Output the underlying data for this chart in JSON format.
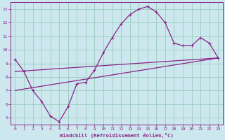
{
  "xlabel": "Windchill (Refroidissement éolien,°C)",
  "xlim": [
    -0.5,
    23.5
  ],
  "ylim": [
    4.5,
    13.5
  ],
  "xticks": [
    0,
    1,
    2,
    3,
    4,
    5,
    6,
    7,
    8,
    9,
    10,
    11,
    12,
    13,
    14,
    15,
    16,
    17,
    18,
    19,
    20,
    21,
    22,
    23
  ],
  "yticks": [
    5,
    6,
    7,
    8,
    9,
    10,
    11,
    12,
    13
  ],
  "bg_color": "#cce8ee",
  "grid_color": "#99ccbb",
  "line_color": "#882288",
  "curve1_x": [
    0,
    1,
    2,
    3,
    4,
    5,
    6,
    7,
    8,
    9,
    10,
    11,
    12,
    13,
    14,
    15,
    16,
    17,
    18,
    19,
    20,
    21,
    22,
    23
  ],
  "curve1_y": [
    9.3,
    8.4,
    7.0,
    6.2,
    5.1,
    4.7,
    5.8,
    7.5,
    7.6,
    8.5,
    9.8,
    10.9,
    11.9,
    12.6,
    13.0,
    13.2,
    12.8,
    12.0,
    10.5,
    10.3,
    10.3,
    10.9,
    10.5,
    9.4
  ],
  "curve2_x": [
    0,
    23
  ],
  "curve2_y": [
    8.4,
    9.4
  ],
  "curve3_x": [
    0,
    23
  ],
  "curve3_y": [
    7.0,
    9.4
  ],
  "marker_style": "+"
}
